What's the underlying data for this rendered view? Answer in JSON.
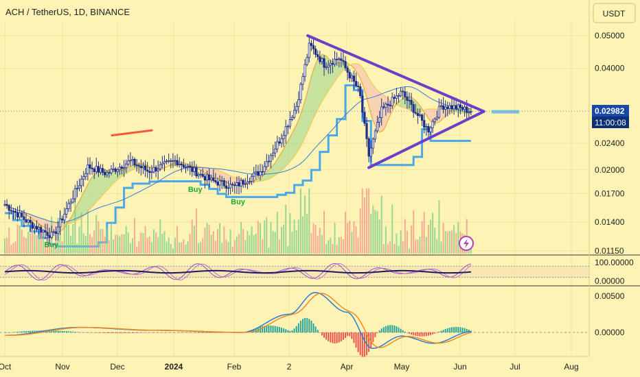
{
  "colors": {
    "background": "#fdf3b4",
    "up": "#1e2c8a",
    "down": "#1e2c8a",
    "triangle": "#6a40c8",
    "resistance": "#f05a3c",
    "price_badge": "#1848a8",
    "buy_label": "#1fa83a",
    "macd": "#2a7bd8",
    "signal": "#f08a1c",
    "rsi_dark": "#1a1a5a",
    "rsi_purple": "#8a50c8",
    "cloud_green": "#9bd48a",
    "cloud_red": "#f4b8b0",
    "kijun_blue": "#4aa8e8"
  },
  "header": {
    "symbol_line": "ACH / TetherUS, 1D, BINANCE",
    "currency_button": "USDT"
  },
  "price_badge": {
    "price": "0.02982",
    "countdown": "11:00:08"
  },
  "icons": {
    "lightning": "lightning-icon"
  },
  "chart_data": [
    {
      "type": "candlestick",
      "title": "ACH / TetherUS, 1D, BINANCE",
      "y_ticks": [
        "0.05000",
        "0.04000",
        "0.02400",
        "0.02000",
        "0.01700",
        "0.01400",
        "0.01150"
      ],
      "y_tick_values": [
        0.05,
        0.04,
        0.024,
        0.02,
        0.017,
        0.014,
        0.0115
      ],
      "y_scale": "log",
      "ylim": [
        0.0113,
        0.056
      ],
      "x_ticks": [
        "Oct",
        "Nov",
        "Dec",
        "2024",
        "Feb",
        "2",
        "Apr",
        "May",
        "Jun",
        "Jul",
        "Aug"
      ],
      "x_tick_dates": [
        "2023-10-01",
        "2023-11-01",
        "2023-12-01",
        "2024-01-01",
        "2024-02-01",
        "2024-03-01",
        "2024-04-01",
        "2024-05-01",
        "2024-06-01",
        "2024-07-01",
        "2024-08-01"
      ],
      "last_price": 0.02982,
      "key_closes": [
        {
          "date": "2023-10-01",
          "close": 0.0158
        },
        {
          "date": "2023-10-15",
          "close": 0.0138
        },
        {
          "date": "2023-10-27",
          "close": 0.0127
        },
        {
          "date": "2023-11-05",
          "close": 0.016
        },
        {
          "date": "2023-11-15",
          "close": 0.0205
        },
        {
          "date": "2023-11-25",
          "close": 0.0195
        },
        {
          "date": "2023-12-08",
          "close": 0.0212
        },
        {
          "date": "2023-12-18",
          "close": 0.0198
        },
        {
          "date": "2024-01-02",
          "close": 0.0213
        },
        {
          "date": "2024-01-20",
          "close": 0.0186
        },
        {
          "date": "2024-02-01",
          "close": 0.0178
        },
        {
          "date": "2024-02-15",
          "close": 0.0198
        },
        {
          "date": "2024-02-25",
          "close": 0.0245
        },
        {
          "date": "2024-03-05",
          "close": 0.031
        },
        {
          "date": "2024-03-12",
          "close": 0.047
        },
        {
          "date": "2024-03-20",
          "close": 0.041
        },
        {
          "date": "2024-03-28",
          "close": 0.043
        },
        {
          "date": "2024-04-08",
          "close": 0.034
        },
        {
          "date": "2024-04-13",
          "close": 0.022
        },
        {
          "date": "2024-04-20",
          "close": 0.03
        },
        {
          "date": "2024-05-01",
          "close": 0.034
        },
        {
          "date": "2024-05-15",
          "close": 0.0262
        },
        {
          "date": "2024-05-22",
          "close": 0.031
        },
        {
          "date": "2024-06-01",
          "close": 0.0305
        },
        {
          "date": "2024-06-07",
          "close": 0.02982
        }
      ],
      "annotations": {
        "triangle_upper": [
          {
            "date": "2024-03-11",
            "price": 0.05
          },
          {
            "date": "2024-06-14",
            "price": 0.0298
          }
        ],
        "triangle_lower": [
          {
            "date": "2024-04-13",
            "price": 0.0203
          },
          {
            "date": "2024-06-14",
            "price": 0.0298
          }
        ],
        "resistance_line": [
          {
            "date": "2023-11-28",
            "price": 0.0253
          },
          {
            "date": "2023-12-20",
            "price": 0.0262
          }
        ],
        "buy_signals": [
          {
            "label": "Buy",
            "date": "2023-10-26",
            "price": 0.0118
          },
          {
            "label": "Buy",
            "date": "2024-01-12",
            "price": 0.0172
          },
          {
            "label": "Buy",
            "date": "2024-02-03",
            "price": 0.0158
          }
        ]
      }
    },
    {
      "type": "line",
      "name": "oscillator",
      "y_ticks": [
        "100.00000",
        "0.00000"
      ],
      "ylim": [
        0,
        100
      ],
      "bands": [
        20,
        80
      ]
    },
    {
      "type": "line",
      "name": "macd",
      "y_ticks": [
        "0.00500",
        "0.00000"
      ],
      "ylim": [
        -0.0025,
        0.0062
      ],
      "key_points": [
        {
          "date": "2023-10-01",
          "value": -0.0004
        },
        {
          "date": "2023-11-10",
          "value": 0.0007
        },
        {
          "date": "2023-12-20",
          "value": 0.0003
        },
        {
          "date": "2024-02-05",
          "value": 0.0
        },
        {
          "date": "2024-03-01",
          "value": 0.0025
        },
        {
          "date": "2024-03-15",
          "value": 0.0055
        },
        {
          "date": "2024-04-01",
          "value": 0.0028
        },
        {
          "date": "2024-04-15",
          "value": -0.0022
        },
        {
          "date": "2024-05-01",
          "value": -0.0005
        },
        {
          "date": "2024-05-18",
          "value": -0.0015
        },
        {
          "date": "2024-06-07",
          "value": 0.0001
        }
      ]
    }
  ]
}
